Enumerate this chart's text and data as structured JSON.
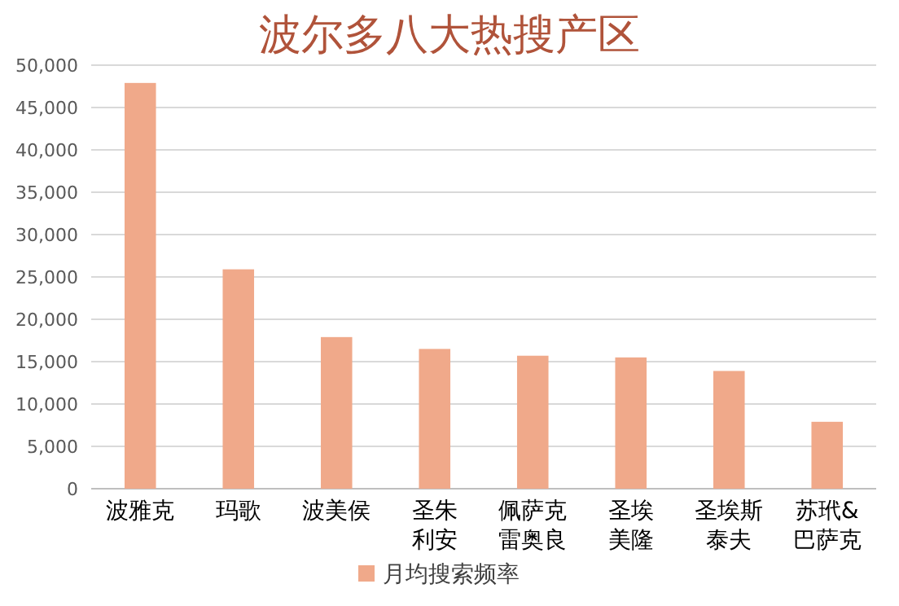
{
  "chart_data": {
    "type": "bar",
    "title": "波尔多八大热搜产区",
    "categories": [
      "波雅克",
      "玛歌",
      "波美侯",
      "圣朱利安",
      "佩萨克雷奥良",
      "圣埃美隆",
      "圣埃斯泰夫",
      "苏玳&巴萨克"
    ],
    "series": [
      {
        "name": "月均搜索频率",
        "color": "#f0a98a",
        "values": [
          47900,
          25900,
          17900,
          16500,
          15700,
          15500,
          13900,
          7900
        ]
      }
    ],
    "ylim": [
      0,
      50000
    ],
    "yticks": [
      {
        "value": 0,
        "label": "0"
      },
      {
        "value": 5000,
        "label": "5,000"
      },
      {
        "value": 10000,
        "label": "10,000"
      },
      {
        "value": 15000,
        "label": "15,000"
      },
      {
        "value": 20000,
        "label": "20,000"
      },
      {
        "value": 25000,
        "label": "25,000"
      },
      {
        "value": 30000,
        "label": "30,000"
      },
      {
        "value": 35000,
        "label": "35,000"
      },
      {
        "value": 40000,
        "label": "40,000"
      },
      {
        "value": 45000,
        "label": "45,000"
      },
      {
        "value": 50000,
        "label": "50,000"
      }
    ],
    "grid": "y",
    "legend": "bottom"
  }
}
